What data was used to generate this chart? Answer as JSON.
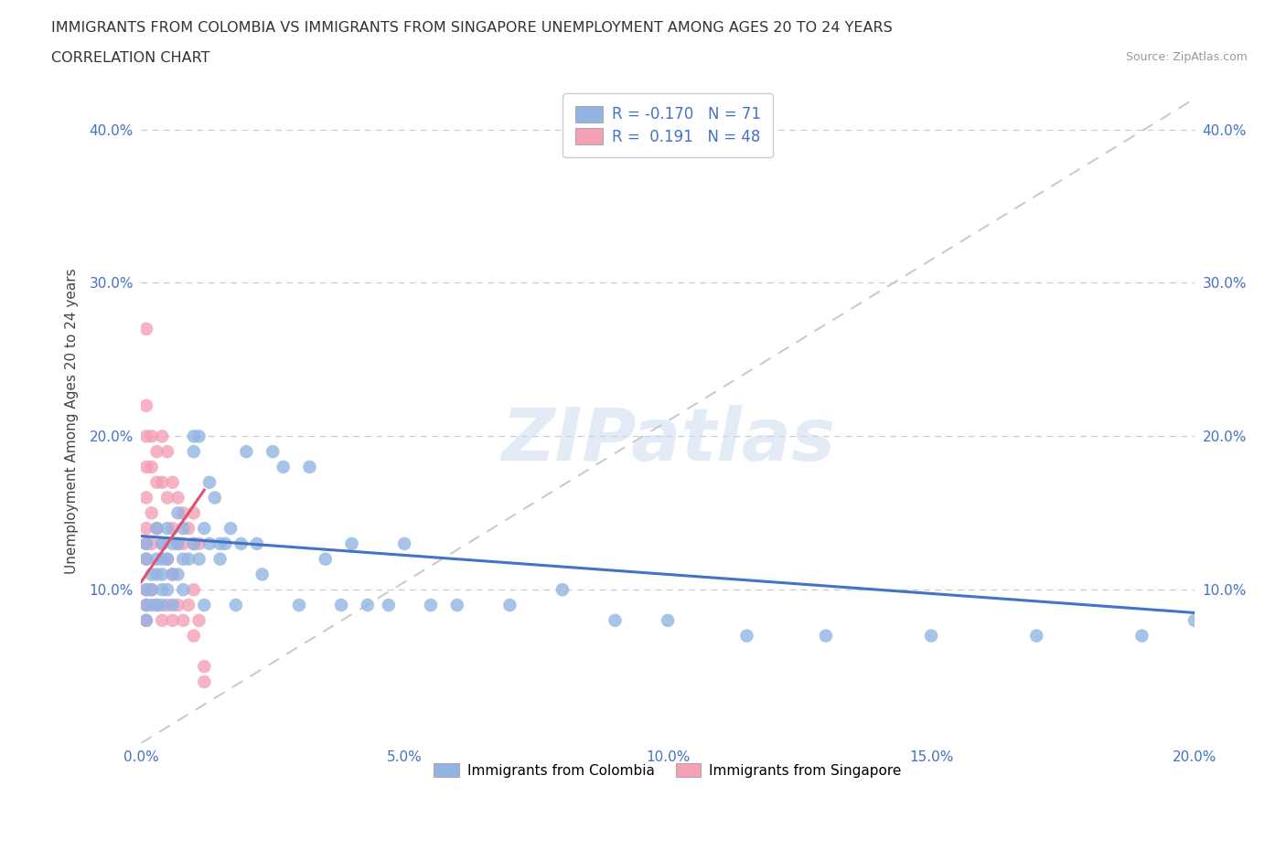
{
  "title_line1": "IMMIGRANTS FROM COLOMBIA VS IMMIGRANTS FROM SINGAPORE UNEMPLOYMENT AMONG AGES 20 TO 24 YEARS",
  "title_line2": "CORRELATION CHART",
  "source_text": "Source: ZipAtlas.com",
  "ylabel": "Unemployment Among Ages 20 to 24 years",
  "xlim": [
    0.0,
    0.2
  ],
  "ylim": [
    0.0,
    0.42
  ],
  "xticks": [
    0.0,
    0.05,
    0.1,
    0.15,
    0.2
  ],
  "yticks": [
    0.0,
    0.1,
    0.2,
    0.3,
    0.4
  ],
  "xtick_labels": [
    "0.0%",
    "5.0%",
    "10.0%",
    "15.0%",
    "20.0%"
  ],
  "ytick_labels": [
    "",
    "10.0%",
    "20.0%",
    "30.0%",
    "40.0%"
  ],
  "colombia_color": "#93b4e3",
  "singapore_color": "#f4a0b5",
  "colombia_R": -0.17,
  "colombia_N": 71,
  "singapore_R": 0.191,
  "singapore_N": 48,
  "trend_colombia_color": "#4472c4",
  "trend_singapore_color": "#e05070",
  "watermark_text": "ZIPatlas",
  "legend_label_colombia": "Immigrants from Colombia",
  "legend_label_singapore": "Immigrants from Singapore",
  "colombia_x": [
    0.001,
    0.001,
    0.001,
    0.001,
    0.001,
    0.002,
    0.002,
    0.002,
    0.003,
    0.003,
    0.003,
    0.003,
    0.004,
    0.004,
    0.004,
    0.004,
    0.004,
    0.005,
    0.005,
    0.005,
    0.006,
    0.006,
    0.006,
    0.007,
    0.007,
    0.007,
    0.008,
    0.008,
    0.008,
    0.009,
    0.01,
    0.01,
    0.01,
    0.011,
    0.011,
    0.012,
    0.012,
    0.013,
    0.013,
    0.014,
    0.015,
    0.015,
    0.016,
    0.017,
    0.018,
    0.019,
    0.02,
    0.022,
    0.023,
    0.025,
    0.027,
    0.03,
    0.032,
    0.035,
    0.038,
    0.04,
    0.043,
    0.047,
    0.05,
    0.055,
    0.06,
    0.07,
    0.08,
    0.09,
    0.1,
    0.115,
    0.13,
    0.15,
    0.17,
    0.19,
    0.2
  ],
  "colombia_y": [
    0.12,
    0.1,
    0.09,
    0.08,
    0.13,
    0.11,
    0.1,
    0.09,
    0.14,
    0.12,
    0.11,
    0.09,
    0.13,
    0.12,
    0.11,
    0.1,
    0.09,
    0.14,
    0.12,
    0.1,
    0.13,
    0.11,
    0.09,
    0.15,
    0.13,
    0.11,
    0.14,
    0.12,
    0.1,
    0.12,
    0.2,
    0.19,
    0.13,
    0.2,
    0.12,
    0.14,
    0.09,
    0.17,
    0.13,
    0.16,
    0.13,
    0.12,
    0.13,
    0.14,
    0.09,
    0.13,
    0.19,
    0.13,
    0.11,
    0.19,
    0.18,
    0.09,
    0.18,
    0.12,
    0.09,
    0.13,
    0.09,
    0.09,
    0.13,
    0.09,
    0.09,
    0.09,
    0.1,
    0.08,
    0.08,
    0.07,
    0.07,
    0.07,
    0.07,
    0.07,
    0.08
  ],
  "singapore_x": [
    0.001,
    0.001,
    0.001,
    0.001,
    0.001,
    0.001,
    0.001,
    0.001,
    0.001,
    0.001,
    0.001,
    0.002,
    0.002,
    0.002,
    0.002,
    0.002,
    0.003,
    0.003,
    0.003,
    0.003,
    0.004,
    0.004,
    0.004,
    0.004,
    0.005,
    0.005,
    0.005,
    0.005,
    0.006,
    0.006,
    0.006,
    0.006,
    0.007,
    0.007,
    0.007,
    0.008,
    0.008,
    0.008,
    0.009,
    0.009,
    0.01,
    0.01,
    0.01,
    0.01,
    0.011,
    0.011,
    0.012,
    0.012
  ],
  "singapore_y": [
    0.27,
    0.22,
    0.2,
    0.18,
    0.16,
    0.14,
    0.13,
    0.12,
    0.1,
    0.09,
    0.08,
    0.2,
    0.18,
    0.15,
    0.13,
    0.1,
    0.19,
    0.17,
    0.14,
    0.09,
    0.2,
    0.17,
    0.13,
    0.08,
    0.19,
    0.16,
    0.12,
    0.09,
    0.17,
    0.14,
    0.11,
    0.08,
    0.16,
    0.13,
    0.09,
    0.15,
    0.13,
    0.08,
    0.14,
    0.09,
    0.15,
    0.13,
    0.1,
    0.07,
    0.13,
    0.08,
    0.05,
    0.04
  ],
  "col_trend_x": [
    0.0,
    0.2
  ],
  "col_trend_y": [
    0.135,
    0.085
  ],
  "sing_trend_x": [
    0.0,
    0.012
  ],
  "sing_trend_y": [
    0.105,
    0.165
  ]
}
